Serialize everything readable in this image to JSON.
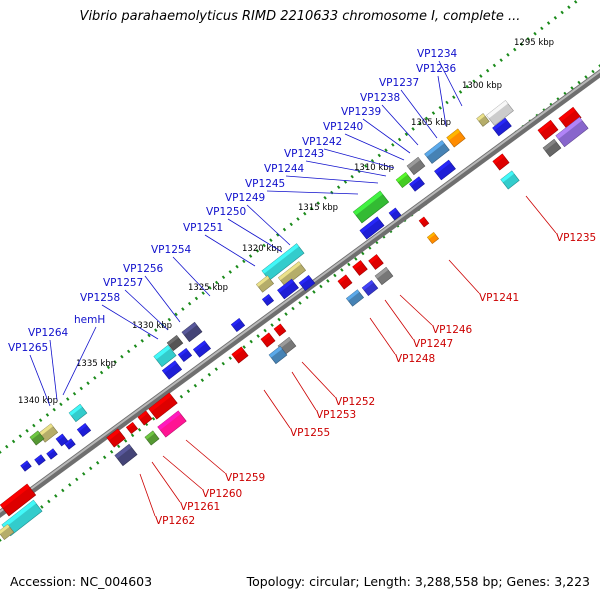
{
  "title": "Vibrio parahaemolyticus RIMD 2210633 chromosome I, complete ...",
  "footer": {
    "accession": "Accession: NC_004603",
    "summary": "Topology: circular; Length: 3,288,558 bp; Genes: 3,223"
  },
  "colors": {
    "backbone": "#8a8a8a",
    "tick": "#1a8a1a",
    "forward_label": "#1010cc",
    "reverse_label": "#cc0000"
  },
  "kbp_markers": [
    "1295 kbp",
    "1300 kbp",
    "1305 kbp",
    "1310 kbp",
    "1315 kbp",
    "1320 kbp",
    "1325 kbp",
    "1330 kbp",
    "1335 kbp",
    "1340 kbp"
  ],
  "forward_genes": [
    "VP1234",
    "VP1236",
    "VP1237",
    "VP1238",
    "VP1239",
    "VP1240",
    "VP1242",
    "VP1243",
    "VP1244",
    "VP1245",
    "VP1249",
    "VP1250",
    "VP1251",
    "VP1254",
    "VP1256",
    "VP1257",
    "VP1258",
    "hemH",
    "VP1264",
    "VP1265"
  ],
  "reverse_genes": [
    "VP1235",
    "VP1241",
    "VP1246",
    "VP1247",
    "VP1248",
    "VP1252",
    "VP1253",
    "VP1255",
    "VP1259",
    "VP1260",
    "VP1261",
    "VP1262"
  ]
}
